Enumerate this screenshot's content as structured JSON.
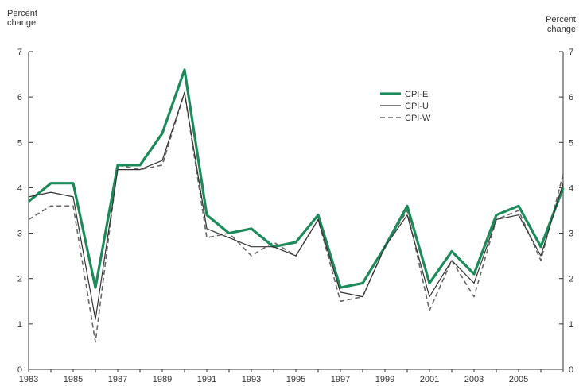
{
  "chart_data": {
    "type": "line",
    "ylabel_left": [
      "Percent",
      "change"
    ],
    "ylabel_right": [
      "Percent",
      "change"
    ],
    "ylim": [
      0,
      7
    ],
    "yticks": [
      0,
      1,
      2,
      3,
      4,
      5,
      6,
      7
    ],
    "xlim": [
      1983,
      2007
    ],
    "xtick_labels": [
      "1983",
      "1985",
      "1987",
      "1989",
      "1991",
      "1993",
      "1995",
      "1997",
      "1999",
      "2001",
      "2003",
      "2005"
    ],
    "legend_position": "upper-middle",
    "x": [
      1983,
      1984,
      1985,
      1986,
      1987,
      1988,
      1989,
      1990,
      1991,
      1992,
      1993,
      1994,
      1995,
      1996,
      1997,
      1998,
      1999,
      2000,
      2001,
      2002,
      2003,
      2004,
      2005,
      2006,
      2007
    ],
    "series": [
      {
        "name": "CPI-E",
        "color": "#1d8a5a",
        "style": "solid-thick",
        "values": [
          3.7,
          4.1,
          4.1,
          1.8,
          4.5,
          4.5,
          5.2,
          6.6,
          3.4,
          3.0,
          3.1,
          2.7,
          2.8,
          3.4,
          1.8,
          1.9,
          2.7,
          3.6,
          1.9,
          2.6,
          2.1,
          3.4,
          3.6,
          2.7,
          4.0
        ]
      },
      {
        "name": "CPI-U",
        "color": "#333333",
        "style": "solid-thin",
        "values": [
          3.8,
          3.9,
          3.8,
          1.1,
          4.4,
          4.4,
          4.6,
          6.1,
          3.1,
          2.9,
          2.7,
          2.7,
          2.5,
          3.3,
          1.7,
          1.6,
          2.7,
          3.4,
          1.6,
          2.4,
          1.9,
          3.3,
          3.4,
          2.5,
          4.1
        ]
      },
      {
        "name": "CPI-W",
        "color": "#666666",
        "style": "dashed",
        "values": [
          3.3,
          3.6,
          3.6,
          0.6,
          4.5,
          4.4,
          4.5,
          6.1,
          2.9,
          3.0,
          2.5,
          2.8,
          2.5,
          3.3,
          1.5,
          1.6,
          2.7,
          3.5,
          1.3,
          2.4,
          1.6,
          3.3,
          3.5,
          2.4,
          4.3
        ]
      }
    ]
  }
}
